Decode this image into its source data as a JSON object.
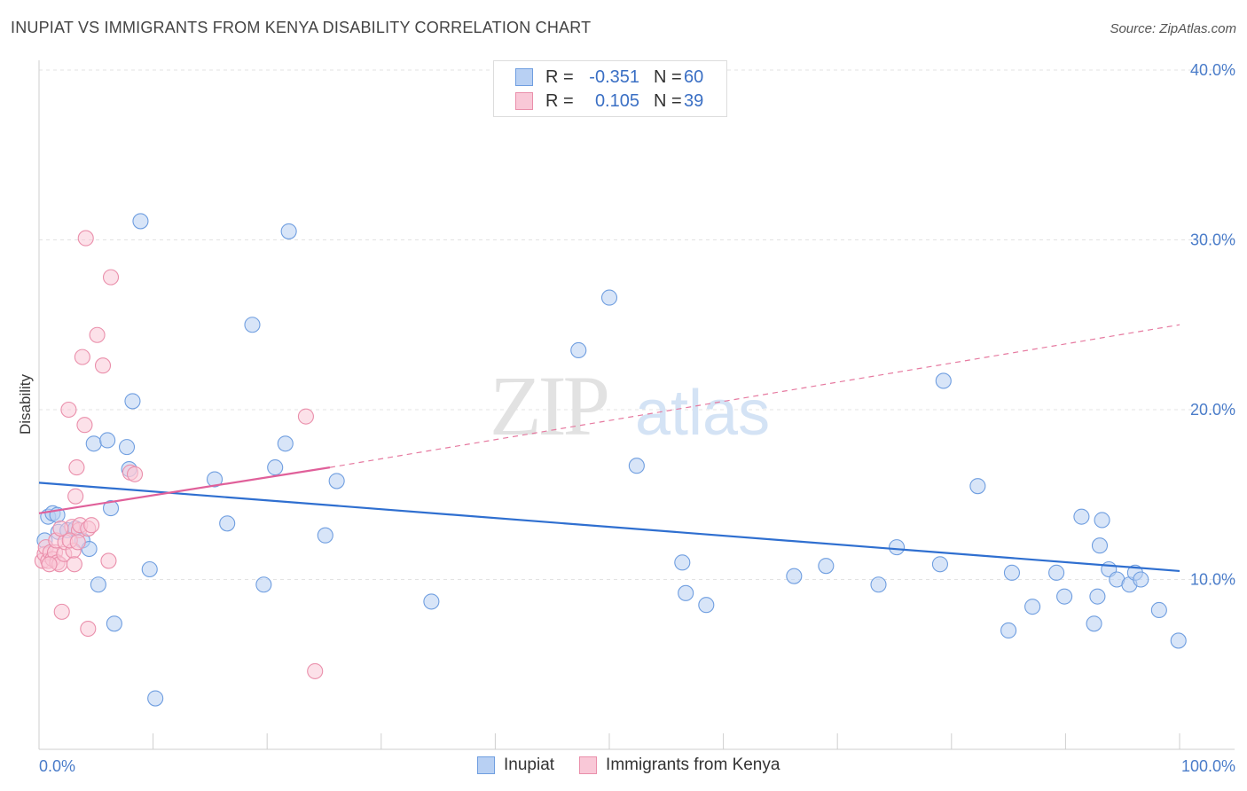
{
  "title": "INUPIAT VS IMMIGRANTS FROM KENYA DISABILITY CORRELATION CHART",
  "source": "Source: ZipAtlas.com",
  "watermark": {
    "zip": "ZIP",
    "atlas": "atlas"
  },
  "legend_top": [
    {
      "r_label": "R =",
      "r_value": "-0.351",
      "n_label": "N =",
      "n_value": "60",
      "fill": "#b8d0f3",
      "stroke": "#6f9ee0"
    },
    {
      "r_label": "R =",
      "r_value": "0.105",
      "n_label": "N =",
      "n_value": "39",
      "fill": "#f9c8d7",
      "stroke": "#ea8fab"
    }
  ],
  "legend_bottom": [
    {
      "label": "Inupiat",
      "fill": "#b8d0f3",
      "stroke": "#6f9ee0"
    },
    {
      "label": "Immigrants from Kenya",
      "fill": "#f9c8d7",
      "stroke": "#ea8fab"
    }
  ],
  "chart_data": {
    "type": "scatter",
    "title": "INUPIAT VS IMMIGRANTS FROM KENYA DISABILITY CORRELATION CHART",
    "xlabel": "",
    "ylabel": "Disability",
    "xlim": [
      0,
      100
    ],
    "ylim": [
      0,
      40
    ],
    "x_tick_labels": [
      "0.0%",
      "100.0%"
    ],
    "y_ticks": [
      10,
      20,
      30,
      40
    ],
    "y_tick_labels": [
      "10.0%",
      "20.0%",
      "30.0%",
      "40.0%"
    ],
    "grid": true,
    "series": [
      {
        "name": "Inupiat",
        "color": "#6f9ee0",
        "fill": "#b8d0f3",
        "points": [
          [
            0.5,
            12.3
          ],
          [
            0.8,
            13.7
          ],
          [
            1.2,
            13.9
          ],
          [
            1.6,
            13.8
          ],
          [
            1.7,
            12.8
          ],
          [
            2.5,
            12.9
          ],
          [
            3.2,
            13.0
          ],
          [
            3.8,
            12.3
          ],
          [
            4.4,
            11.8
          ],
          [
            4.8,
            18.0
          ],
          [
            5.2,
            9.7
          ],
          [
            6.0,
            18.2
          ],
          [
            6.3,
            14.2
          ],
          [
            6.6,
            7.4
          ],
          [
            7.7,
            17.8
          ],
          [
            7.9,
            16.5
          ],
          [
            8.2,
            20.5
          ],
          [
            8.9,
            31.1
          ],
          [
            9.7,
            10.6
          ],
          [
            10.2,
            3.0
          ],
          [
            15.4,
            15.9
          ],
          [
            16.5,
            13.3
          ],
          [
            18.7,
            25.0
          ],
          [
            19.7,
            9.7
          ],
          [
            20.7,
            16.6
          ],
          [
            21.6,
            18.0
          ],
          [
            21.9,
            30.5
          ],
          [
            25.1,
            12.6
          ],
          [
            26.1,
            15.8
          ],
          [
            34.4,
            8.7
          ],
          [
            47.3,
            23.5
          ],
          [
            50.0,
            26.6
          ],
          [
            52.4,
            16.7
          ],
          [
            56.4,
            11.0
          ],
          [
            56.7,
            9.2
          ],
          [
            58.5,
            8.5
          ],
          [
            66.2,
            10.2
          ],
          [
            69.0,
            10.8
          ],
          [
            73.6,
            9.7
          ],
          [
            75.2,
            11.9
          ],
          [
            79.0,
            10.9
          ],
          [
            79.3,
            21.7
          ],
          [
            82.3,
            15.5
          ],
          [
            85.0,
            7.0
          ],
          [
            85.3,
            10.4
          ],
          [
            87.1,
            8.4
          ],
          [
            89.2,
            10.4
          ],
          [
            89.9,
            9.0
          ],
          [
            91.4,
            13.7
          ],
          [
            92.5,
            7.4
          ],
          [
            92.8,
            9.0
          ],
          [
            93.0,
            12.0
          ],
          [
            93.8,
            10.6
          ],
          [
            94.5,
            10.0
          ],
          [
            95.6,
            9.7
          ],
          [
            96.1,
            10.4
          ],
          [
            96.6,
            10.0
          ],
          [
            98.2,
            8.2
          ],
          [
            99.9,
            6.4
          ],
          [
            93.2,
            13.5
          ]
        ],
        "trend": {
          "x": [
            0,
            100
          ],
          "y": [
            15.7,
            10.5
          ],
          "style": "solid"
        }
      },
      {
        "name": "Immigrants from Kenya",
        "color": "#ea8fab",
        "fill": "#f9c8d7",
        "points": [
          [
            0.3,
            11.1
          ],
          [
            0.5,
            11.5
          ],
          [
            0.6,
            11.9
          ],
          [
            0.8,
            11.1
          ],
          [
            1.0,
            11.6
          ],
          [
            1.2,
            11.2
          ],
          [
            1.4,
            11.6
          ],
          [
            1.5,
            12.3
          ],
          [
            1.6,
            11.0
          ],
          [
            1.8,
            10.9
          ],
          [
            2.0,
            8.1
          ],
          [
            2.2,
            11.5
          ],
          [
            2.3,
            12.2
          ],
          [
            2.6,
            20.0
          ],
          [
            2.9,
            13.1
          ],
          [
            3.0,
            11.7
          ],
          [
            3.1,
            10.9
          ],
          [
            3.2,
            14.9
          ],
          [
            3.3,
            16.6
          ],
          [
            3.5,
            12.9
          ],
          [
            3.6,
            13.2
          ],
          [
            3.8,
            23.1
          ],
          [
            4.0,
            19.1
          ],
          [
            4.1,
            30.1
          ],
          [
            4.3,
            13.0
          ],
          [
            4.3,
            7.1
          ],
          [
            4.6,
            13.2
          ],
          [
            5.1,
            24.4
          ],
          [
            5.6,
            22.6
          ],
          [
            6.1,
            11.1
          ],
          [
            6.3,
            27.8
          ],
          [
            8.0,
            16.3
          ],
          [
            8.4,
            16.2
          ],
          [
            23.4,
            19.6
          ],
          [
            24.2,
            4.6
          ],
          [
            2.7,
            12.3
          ],
          [
            1.9,
            13.0
          ],
          [
            0.9,
            10.9
          ],
          [
            3.4,
            12.2
          ]
        ],
        "trend": {
          "x": [
            0,
            25.5
          ],
          "y": [
            13.9,
            16.6
          ],
          "style": "solid"
        },
        "trend_extension": {
          "x": [
            25.5,
            100
          ],
          "y": [
            16.6,
            25.0
          ],
          "style": "dashed"
        }
      }
    ]
  }
}
